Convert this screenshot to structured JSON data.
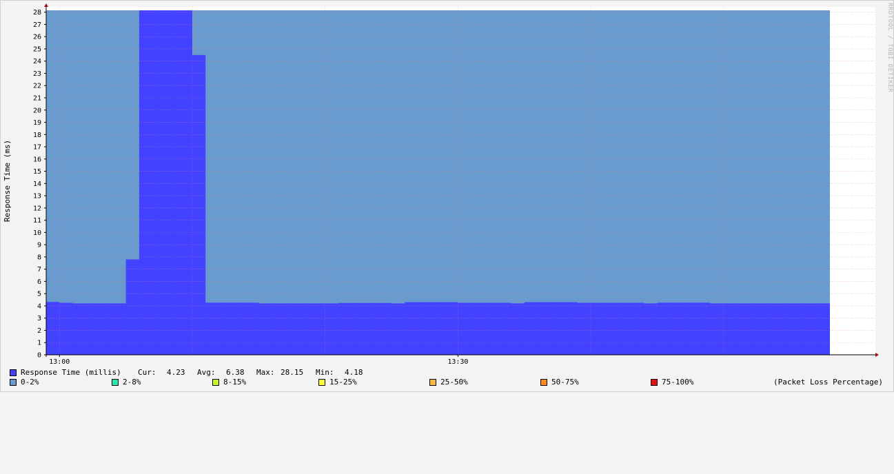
{
  "watermark": "RRDTOOL / TOBI OETIKER",
  "chart_data": {
    "type": "area",
    "ylabel": "Response Time (ms)",
    "ylim": [
      0,
      28.15
    ],
    "yticks": [
      0,
      1,
      2,
      3,
      4,
      5,
      6,
      7,
      8,
      9,
      10,
      11,
      12,
      13,
      14,
      15,
      16,
      17,
      18,
      19,
      20,
      21,
      22,
      23,
      24,
      25,
      26,
      27,
      28
    ],
    "xlim": [
      "12:59",
      "13:58"
    ],
    "xticks": [
      {
        "t": "13:00"
      },
      {
        "t": "13:30"
      }
    ],
    "background": {
      "name": "0-2%",
      "color": "#6a9bcf",
      "value": 28.15
    },
    "series": [
      {
        "name": "Response Time (millis)",
        "color": "#4343ff",
        "x": [
          "12:59",
          "13:00",
          "13:01",
          "13:02",
          "13:03",
          "13:04",
          "13:05",
          "13:06",
          "13:07",
          "13:08",
          "13:09",
          "13:10",
          "13:11",
          "13:12",
          "13:13",
          "13:14",
          "13:15",
          "13:16",
          "13:17",
          "13:18",
          "13:19",
          "13:20",
          "13:21",
          "13:22",
          "13:23",
          "13:24",
          "13:25",
          "13:26",
          "13:27",
          "13:28",
          "13:29",
          "13:30",
          "13:31",
          "13:32",
          "13:33",
          "13:34",
          "13:35",
          "13:36",
          "13:37",
          "13:38",
          "13:39",
          "13:40",
          "13:41",
          "13:42",
          "13:43",
          "13:44",
          "13:45",
          "13:46",
          "13:47",
          "13:48",
          "13:49",
          "13:50",
          "13:51",
          "13:52",
          "13:53",
          "13:54",
          "13:55",
          "13:56",
          "13:57"
        ],
        "values": [
          4.32,
          4.25,
          4.2,
          4.2,
          4.2,
          4.2,
          7.8,
          28.15,
          28.15,
          28.15,
          28.15,
          24.5,
          4.26,
          4.26,
          4.26,
          4.26,
          4.2,
          4.2,
          4.2,
          4.2,
          4.2,
          4.2,
          4.24,
          4.24,
          4.24,
          4.24,
          4.2,
          4.3,
          4.3,
          4.3,
          4.3,
          4.25,
          4.25,
          4.25,
          4.25,
          4.2,
          4.3,
          4.3,
          4.3,
          4.3,
          4.25,
          4.25,
          4.25,
          4.25,
          4.25,
          4.2,
          4.26,
          4.26,
          4.26,
          4.26,
          4.2,
          4.2,
          4.2,
          4.2,
          4.2,
          4.2,
          4.2,
          4.2,
          4.2
        ]
      }
    ]
  },
  "stats": {
    "series_label": "Response Time (millis)",
    "cur_label": "Cur:",
    "cur": "4.23",
    "avg_label": "Avg:",
    "avg": "6.38",
    "max_label": "Max:",
    "max": "28.15",
    "min_label": "Min:",
    "min": "4.18"
  },
  "legend": {
    "series_color": "#4343ff",
    "loss_items": [
      {
        "label": "0-2%",
        "color": "#6a9bcf"
      },
      {
        "label": "2-8%",
        "color": "#25e8ad"
      },
      {
        "label": "8-15%",
        "color": "#c4f51f"
      },
      {
        "label": "15-25%",
        "color": "#ffff33"
      },
      {
        "label": "25-50%",
        "color": "#f7b940"
      },
      {
        "label": "50-75%",
        "color": "#ff8c1a"
      },
      {
        "label": "75-100%",
        "color": "#e61010"
      }
    ],
    "loss_note": "(Packet Loss Percentage)"
  }
}
